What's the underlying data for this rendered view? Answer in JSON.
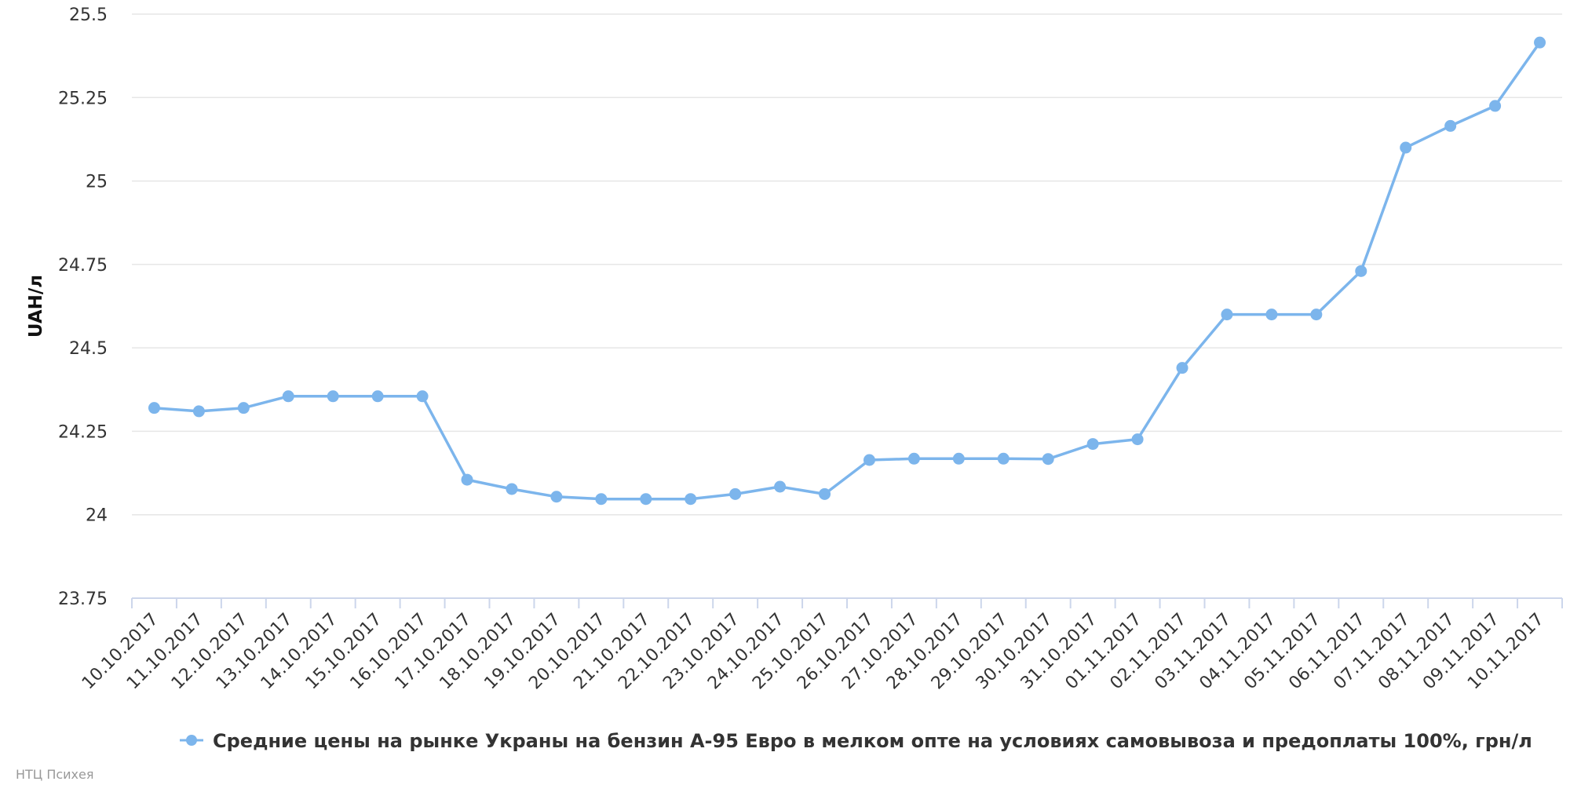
{
  "chart_data": {
    "type": "line",
    "title": "",
    "xlabel": "",
    "ylabel": "UAH/л",
    "ylim": [
      23.75,
      25.5
    ],
    "yticks": [
      "23.75",
      "24",
      "24.25",
      "24.5",
      "24.75",
      "25",
      "25.25",
      "25.5"
    ],
    "grid": true,
    "legend_position": "bottom-center",
    "color": "#7cb5ec",
    "categories": [
      "10.10.2017",
      "11.10.2017",
      "12.10.2017",
      "13.10.2017",
      "14.10.2017",
      "15.10.2017",
      "16.10.2017",
      "17.10.2017",
      "18.10.2017",
      "19.10.2017",
      "20.10.2017",
      "21.10.2017",
      "22.10.2017",
      "23.10.2017",
      "24.10.2017",
      "25.10.2017",
      "26.10.2017",
      "27.10.2017",
      "28.10.2017",
      "29.10.2017",
      "30.10.2017",
      "31.10.2017",
      "01.11.2017",
      "02.11.2017",
      "03.11.2017",
      "04.11.2017",
      "05.11.2017",
      "06.11.2017",
      "07.11.2017",
      "08.11.2017",
      "09.11.2017",
      "10.11.2017"
    ],
    "series": [
      {
        "name": "Средние цены на рынке Украны на бензин А-95 Евро в мелком опте на условиях самовывоза и предоплаты 100%, грн/л",
        "values": [
          24.32,
          24.31,
          24.32,
          24.355,
          24.355,
          24.355,
          24.355,
          24.105,
          24.077,
          24.054,
          24.047,
          24.047,
          24.047,
          24.062,
          24.084,
          24.062,
          24.164,
          24.168,
          24.168,
          24.168,
          24.167,
          24.212,
          24.226,
          24.44,
          24.6,
          24.6,
          24.6,
          24.73,
          25.1,
          25.165,
          25.225,
          25.415
        ]
      }
    ]
  },
  "credit": "НТЦ Психея"
}
